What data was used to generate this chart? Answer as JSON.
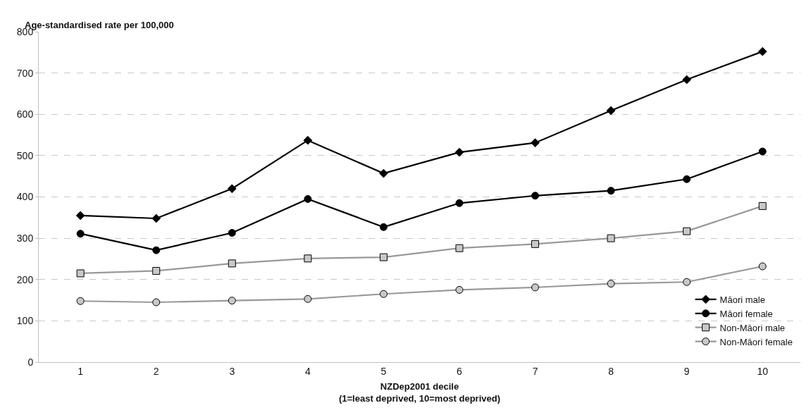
{
  "chart_data": {
    "type": "line",
    "ylabel": "Age-standardised rate per 100,000",
    "xlabel": "NZDep2001 decile\n(1=least deprived, 10=most deprived)",
    "categories": [
      "1",
      "2",
      "3",
      "4",
      "5",
      "6",
      "7",
      "8",
      "9",
      "10"
    ],
    "series": [
      {
        "name": "Māori male",
        "color": "#000000",
        "marker": "diamond",
        "values": [
          355,
          348,
          420,
          537,
          457,
          508,
          531,
          609,
          684,
          752
        ]
      },
      {
        "name": "Māori female",
        "color": "#000000",
        "marker": "circle",
        "values": [
          311,
          271,
          313,
          395,
          327,
          385,
          403,
          415,
          443,
          510
        ]
      },
      {
        "name": "Non-Māori male",
        "color": "#999999",
        "marker": "square",
        "values": [
          215,
          221,
          239,
          251,
          254,
          276,
          286,
          300,
          317,
          378
        ]
      },
      {
        "name": "Non-Māori female",
        "color": "#999999",
        "marker": "circle",
        "values": [
          148,
          145,
          149,
          153,
          165,
          175,
          181,
          190,
          194,
          232
        ]
      }
    ],
    "ylim": [
      0,
      800
    ],
    "yticks": [
      0,
      100,
      200,
      300,
      400,
      500,
      600,
      700,
      800
    ],
    "grid": "y",
    "legend": "bottom right",
    "line_style": "solid"
  }
}
